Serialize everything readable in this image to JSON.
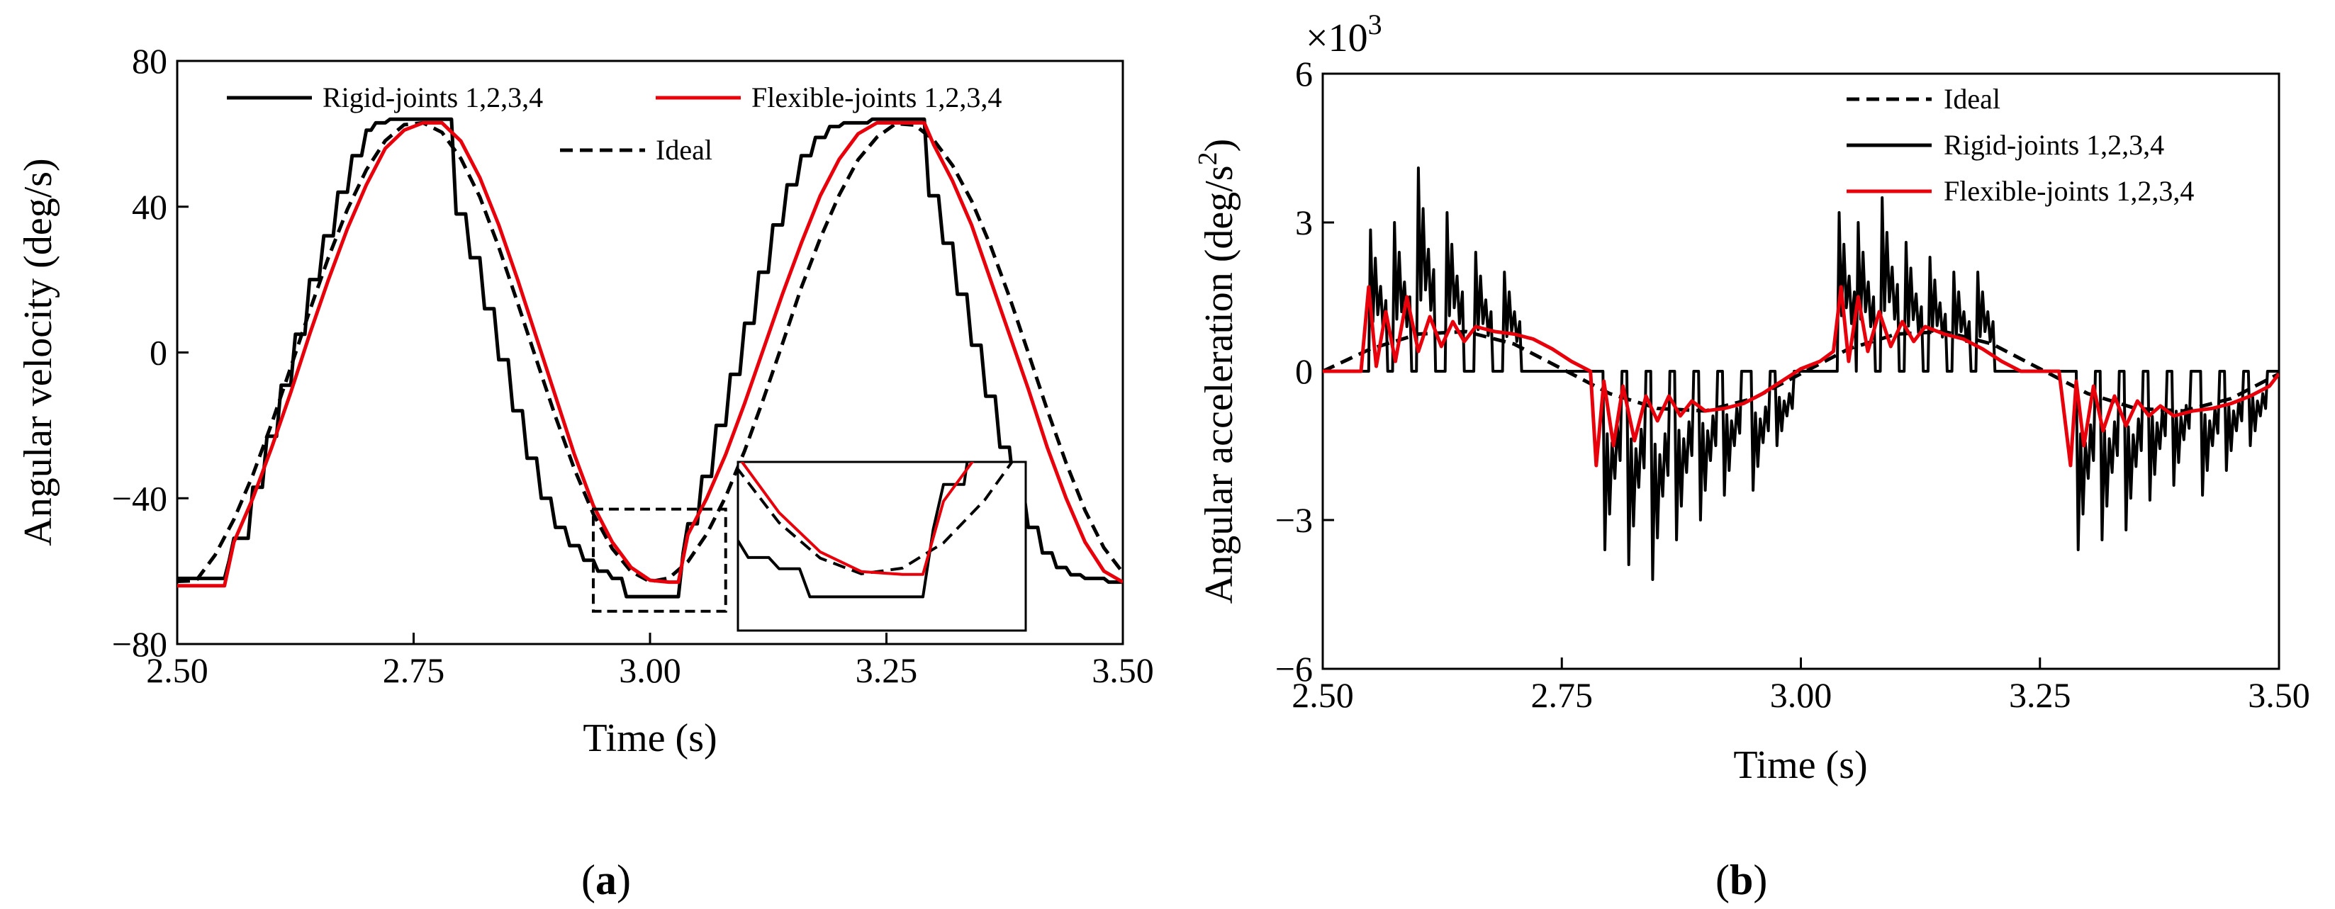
{
  "chart_data": [
    {
      "type": "line",
      "panel_label": "(a)",
      "panel_letter": "a",
      "xlabel": "Time (s)",
      "ylabel": "Angular velocity (deg/s)",
      "xlim": [
        2.5,
        3.5
      ],
      "ylim": [
        -80,
        80
      ],
      "xticks": [
        2.5,
        2.75,
        3.0,
        3.25,
        3.5
      ],
      "xtick_labels": [
        "2.50",
        "2.75",
        "3.00",
        "3.25",
        "3.50"
      ],
      "yticks": [
        -80,
        -40,
        0,
        40,
        80
      ],
      "ytick_labels": [
        "−80",
        "−40",
        "0",
        "40",
        "80"
      ],
      "legend": [
        "Rigid-joints 1,2,3,4",
        "Flexible-joints 1,2,3,4",
        "Ideal"
      ],
      "inset": {
        "note": "zoom of dashed region",
        "x_range": [
          2.94,
          3.08
        ],
        "y_range": [
          -71,
          -43
        ]
      },
      "series": [
        {
          "name": "Ideal",
          "style": "dashed",
          "color": "#000000",
          "x": [
            2.5,
            2.52,
            2.54,
            2.56,
            2.58,
            2.6,
            2.62,
            2.64,
            2.66,
            2.68,
            2.7,
            2.72,
            2.74,
            2.76,
            2.78,
            2.8,
            2.82,
            2.84,
            2.86,
            2.88,
            2.9,
            2.92,
            2.94,
            2.96,
            2.98,
            3.0,
            3.02,
            3.04,
            3.06,
            3.08,
            3.1,
            3.12,
            3.14,
            3.16,
            3.18,
            3.2,
            3.22,
            3.24,
            3.26,
            3.28,
            3.3,
            3.32,
            3.34,
            3.36,
            3.38,
            3.4,
            3.42,
            3.44,
            3.46,
            3.48,
            3.5
          ],
          "y": [
            -62.8,
            -62.6,
            -55.6,
            -45.8,
            -33.6,
            -19.4,
            -4.1,
            11.4,
            26.1,
            39.3,
            50.1,
            58.1,
            62.5,
            63.0,
            60.4,
            53.2,
            42.7,
            28.9,
            13.6,
            -2.1,
            -17.6,
            -32.0,
            -44.3,
            -53.8,
            -60.1,
            -62.9,
            -61.9,
            -57.4,
            -49.8,
            -39.6,
            -27.0,
            -12.7,
            2.4,
            17.8,
            31.3,
            43.2,
            52.9,
            59.1,
            62.8,
            62.4,
            58.3,
            51.3,
            41.6,
            29.4,
            15.3,
            -0.1,
            -15.7,
            -30.3,
            -43.3,
            -53.6,
            -60.4
          ]
        },
        {
          "name": "Rigid-joints 1,2,3,4",
          "style": "solid",
          "color": "#000000",
          "x": [
            2.5,
            2.55,
            2.555,
            2.56,
            2.575,
            2.58,
            2.59,
            2.595,
            2.605,
            2.61,
            2.62,
            2.625,
            2.635,
            2.64,
            2.65,
            2.655,
            2.665,
            2.67,
            2.68,
            2.685,
            2.695,
            2.7,
            2.705,
            2.71,
            2.72,
            2.725,
            2.79,
            2.795,
            2.805,
            2.81,
            2.82,
            2.825,
            2.835,
            2.84,
            2.85,
            2.855,
            2.865,
            2.87,
            2.88,
            2.885,
            2.895,
            2.9,
            2.91,
            2.915,
            2.925,
            2.93,
            2.94,
            2.945,
            2.955,
            2.96,
            2.97,
            2.975,
            2.99,
            2.995,
            3.03,
            3.035,
            3.04,
            3.05,
            3.055,
            3.065,
            3.07,
            3.08,
            3.085,
            3.095,
            3.1,
            3.11,
            3.115,
            3.125,
            3.13,
            3.14,
            3.145,
            3.155,
            3.16,
            3.17,
            3.175,
            3.185,
            3.19,
            3.2,
            3.205,
            3.215,
            3.22,
            3.23,
            3.235,
            3.29,
            3.295,
            3.305,
            3.31,
            3.32,
            3.325,
            3.335,
            3.34,
            3.35,
            3.355,
            3.365,
            3.37,
            3.38,
            3.385,
            3.395,
            3.4,
            3.41,
            3.415,
            3.425,
            3.43,
            3.44,
            3.445,
            3.455,
            3.46,
            3.47,
            3.475,
            3.48,
            3.485,
            3.5
          ],
          "y": [
            -62.0,
            -62.0,
            -57.0,
            -51.0,
            -51.0,
            -37.0,
            -37.0,
            -23.0,
            -23.0,
            -9.0,
            -9.0,
            5.0,
            5.0,
            20.0,
            20.0,
            32.0,
            32.0,
            44.0,
            44.0,
            54.0,
            54.0,
            61.0,
            61.0,
            63.0,
            63.0,
            64.0,
            64.0,
            38.0,
            38.0,
            26.0,
            26.0,
            12.0,
            12.0,
            -2.0,
            -2.0,
            -16.0,
            -16.0,
            -29.0,
            -29.0,
            -40.0,
            -40.0,
            -48.0,
            -48.0,
            -53.0,
            -53.0,
            -57.0,
            -57.0,
            -60.0,
            -60.0,
            -62.0,
            -62.0,
            -67.0,
            -67.0,
            -67.0,
            -67.0,
            -55.0,
            -47.0,
            -47.0,
            -34.0,
            -34.0,
            -20.0,
            -20.0,
            -6.0,
            -6.0,
            8.0,
            8.0,
            22.0,
            22.0,
            35.0,
            35.0,
            46.0,
            46.0,
            54.0,
            54.0,
            59.0,
            59.0,
            62.0,
            62.0,
            63.0,
            63.0,
            63.0,
            63.0,
            64.0,
            64.0,
            43.0,
            43.0,
            30.0,
            30.0,
            16.0,
            16.0,
            2.0,
            2.0,
            -12.0,
            -12.0,
            -26.0,
            -26.0,
            -38.0,
            -38.0,
            -48.0,
            -48.0,
            -55.0,
            -55.0,
            -59.0,
            -59.0,
            -61.0,
            -61.0,
            -62.0,
            -62.0,
            -62.0,
            -62.0,
            -63.0,
            -63.0
          ]
        },
        {
          "name": "Flexible-joints 1,2,3,4",
          "style": "solid",
          "color": "#e8000b",
          "x": [
            2.5,
            2.55,
            2.56,
            2.58,
            2.6,
            2.62,
            2.64,
            2.66,
            2.68,
            2.7,
            2.72,
            2.74,
            2.76,
            2.78,
            2.8,
            2.82,
            2.84,
            2.86,
            2.88,
            2.9,
            2.92,
            2.94,
            2.96,
            2.98,
            3.0,
            3.02,
            3.03,
            3.04,
            3.06,
            3.08,
            3.1,
            3.12,
            3.14,
            3.16,
            3.18,
            3.2,
            3.22,
            3.24,
            3.26,
            3.28,
            3.29,
            3.3,
            3.32,
            3.34,
            3.36,
            3.38,
            3.4,
            3.42,
            3.44,
            3.46,
            3.48,
            3.5
          ],
          "y": [
            -64.0,
            -64.0,
            -52.0,
            -40.0,
            -26.0,
            -11.0,
            5.0,
            20.0,
            34.0,
            46.0,
            56.0,
            61.0,
            63.0,
            63.0,
            58.0,
            48.0,
            35.0,
            20.0,
            4.0,
            -12.0,
            -28.0,
            -42.0,
            -52.0,
            -59.0,
            -62.5,
            -63.0,
            -63.0,
            -50.0,
            -40.0,
            -28.0,
            -14.0,
            1.0,
            16.0,
            30.0,
            43.0,
            53.0,
            60.0,
            63.0,
            63.0,
            63.0,
            63.0,
            57.0,
            47.0,
            35.0,
            20.0,
            5.0,
            -10.0,
            -26.0,
            -40.0,
            -52.0,
            -60.0,
            -63.0
          ]
        }
      ]
    },
    {
      "type": "line",
      "panel_label": "(b)",
      "panel_letter": "b",
      "xlabel": "Time (s)",
      "ylabel_main": "Angular acceleration (deg/s",
      "ylabel_sup": "2",
      "ylabel_close": ")",
      "multiplier": "×10",
      "multiplier_exp": "3",
      "xlim": [
        2.5,
        3.5
      ],
      "ylim": [
        -6,
        6
      ],
      "xticks": [
        2.5,
        2.75,
        3.0,
        3.25,
        3.5
      ],
      "xtick_labels": [
        "2.50",
        "2.75",
        "3.00",
        "3.25",
        "3.50"
      ],
      "yticks": [
        -6,
        -3,
        0,
        3,
        6
      ],
      "ytick_labels": [
        "−6",
        "−3",
        "0",
        "3",
        "6"
      ],
      "legend": [
        "Ideal",
        "Rigid-joints 1,2,3,4",
        "Flexible-joints 1,2,3,4"
      ],
      "series": [
        {
          "name": "Ideal",
          "style": "dashed",
          "color": "#000000",
          "x": [
            2.5,
            2.55,
            2.6,
            2.65,
            2.7,
            2.75,
            2.8,
            2.85,
            2.9,
            2.95,
            3.0,
            3.05,
            3.1,
            3.15,
            3.2,
            3.25,
            3.3,
            3.35,
            3.4,
            3.45,
            3.5
          ],
          "y": [
            0.0,
            0.45,
            0.75,
            0.8,
            0.55,
            0.05,
            -0.45,
            -0.75,
            -0.8,
            -0.55,
            -0.05,
            0.45,
            0.75,
            0.8,
            0.55,
            0.05,
            -0.45,
            -0.75,
            -0.8,
            -0.55,
            -0.05
          ]
        },
        {
          "name": "Rigid-joints 1,2,3,4",
          "style": "solid",
          "color": "#000000",
          "spikes": [
            {
              "t": 2.55,
              "peak": 2.85
            },
            {
              "t": 2.575,
              "peak": 3.0
            },
            {
              "t": 2.6,
              "peak": 4.1
            },
            {
              "t": 2.63,
              "peak": 3.2
            },
            {
              "t": 2.66,
              "peak": 2.4
            },
            {
              "t": 2.69,
              "peak": 2.0
            },
            {
              "t": 2.795,
              "peak": -3.6
            },
            {
              "t": 2.82,
              "peak": -3.9
            },
            {
              "t": 2.845,
              "peak": -4.2
            },
            {
              "t": 2.87,
              "peak": -3.4
            },
            {
              "t": 2.895,
              "peak": -3.0
            },
            {
              "t": 2.92,
              "peak": -2.5
            },
            {
              "t": 2.95,
              "peak": -2.4
            },
            {
              "t": 2.975,
              "peak": -1.5
            },
            {
              "t": 3.04,
              "peak": 3.2
            },
            {
              "t": 3.06,
              "peak": 3.0
            },
            {
              "t": 3.085,
              "peak": 3.5
            },
            {
              "t": 3.11,
              "peak": 2.6
            },
            {
              "t": 3.135,
              "peak": 2.3
            },
            {
              "t": 3.16,
              "peak": 2.0
            },
            {
              "t": 3.185,
              "peak": 2.0
            },
            {
              "t": 3.29,
              "peak": -3.6
            },
            {
              "t": 3.315,
              "peak": -3.4
            },
            {
              "t": 3.34,
              "peak": -3.2
            },
            {
              "t": 3.365,
              "peak": -2.6
            },
            {
              "t": 3.39,
              "peak": -2.3
            },
            {
              "t": 3.42,
              "peak": -2.5
            },
            {
              "t": 3.445,
              "peak": -2.0
            },
            {
              "t": 3.47,
              "peak": -1.5
            }
          ]
        },
        {
          "name": "Flexible-joints 1,2,3,4",
          "style": "solid",
          "color": "#e8000b",
          "x": [
            2.5,
            2.54,
            2.548,
            2.556,
            2.566,
            2.576,
            2.588,
            2.6,
            2.612,
            2.624,
            2.636,
            2.648,
            2.66,
            2.68,
            2.7,
            2.72,
            2.74,
            2.76,
            2.78,
            2.786,
            2.794,
            2.804,
            2.814,
            2.826,
            2.838,
            2.85,
            2.862,
            2.874,
            2.886,
            2.9,
            2.92,
            2.94,
            2.96,
            2.98,
            3.0,
            3.02,
            3.034,
            3.042,
            3.05,
            3.06,
            3.07,
            3.082,
            3.094,
            3.106,
            3.118,
            3.13,
            3.15,
            3.17,
            3.19,
            3.21,
            3.23,
            3.25,
            3.27,
            3.282,
            3.288,
            3.296,
            3.306,
            3.316,
            3.328,
            3.34,
            3.352,
            3.364,
            3.376,
            3.39,
            3.41,
            3.43,
            3.45,
            3.47,
            3.49,
            3.5
          ],
          "y": [
            0.0,
            0.0,
            1.7,
            0.1,
            1.2,
            0.2,
            1.5,
            0.4,
            1.1,
            0.5,
            1.0,
            0.6,
            0.9,
            0.8,
            0.75,
            0.65,
            0.45,
            0.2,
            0.0,
            -1.9,
            -0.2,
            -1.5,
            -0.3,
            -1.4,
            -0.5,
            -1.0,
            -0.5,
            -0.9,
            -0.6,
            -0.8,
            -0.75,
            -0.65,
            -0.45,
            -0.2,
            0.05,
            0.2,
            0.4,
            1.7,
            0.2,
            1.5,
            0.4,
            1.2,
            0.5,
            1.0,
            0.6,
            0.9,
            0.75,
            0.65,
            0.45,
            0.2,
            0.0,
            0.0,
            0.0,
            -1.9,
            -0.2,
            -1.5,
            -0.3,
            -1.2,
            -0.5,
            -1.1,
            -0.6,
            -0.9,
            -0.7,
            -0.9,
            -0.8,
            -0.75,
            -0.65,
            -0.5,
            -0.3,
            -0.05
          ]
        }
      ]
    }
  ]
}
